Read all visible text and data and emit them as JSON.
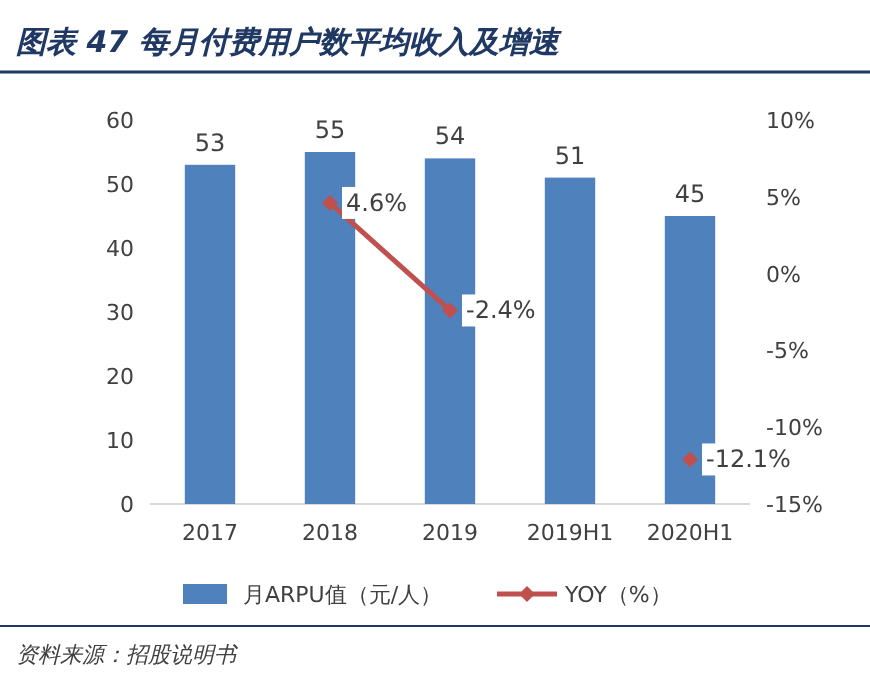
{
  "chart_data": {
    "type": "bar",
    "title": "图表 47   每月付费用户数平均收入及增速",
    "categories": [
      "2017",
      "2018",
      "2019",
      "2019H1",
      "2020H1"
    ],
    "series": [
      {
        "name": "月ARPU值（元/人）",
        "color": "#4f81bd",
        "values": [
          53,
          55,
          54,
          51,
          45
        ],
        "value_labels": [
          "53",
          "55",
          "54",
          "51",
          "45"
        ]
      },
      {
        "name": "YOY（%）",
        "type": "line",
        "axis": "y2",
        "color": "#c0504d",
        "marker": "diamond",
        "values": [
          null,
          4.6,
          -2.4,
          null,
          -12.1
        ],
        "value_labels": [
          null,
          "4.6%",
          "-2.4%",
          null,
          "-12.1%"
        ]
      }
    ],
    "ylim": [
      0,
      60
    ],
    "yticks": [
      0,
      10,
      20,
      30,
      40,
      50,
      60
    ],
    "y2lim": [
      -15,
      10
    ],
    "y2ticks": [
      {
        "value": -15,
        "label": "-15%"
      },
      {
        "value": -10,
        "label": "-10%"
      },
      {
        "value": -5,
        "label": "-5%"
      },
      {
        "value": 0,
        "label": "0%"
      },
      {
        "value": 5,
        "label": "5%"
      },
      {
        "value": 10,
        "label": "10%"
      }
    ],
    "legend": "bottom",
    "annotations": [
      "资料来源：招股说明书"
    ]
  }
}
